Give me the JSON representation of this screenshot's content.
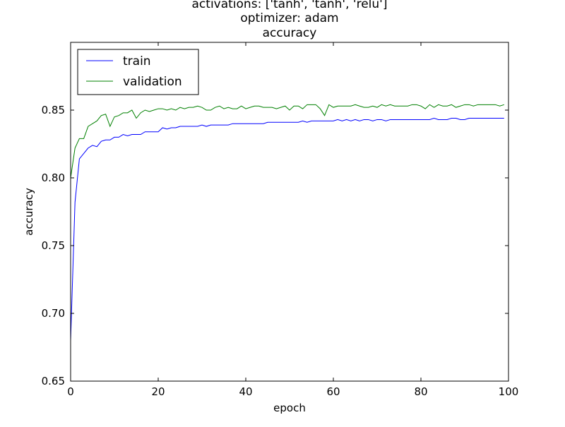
{
  "chart_data": {
    "type": "line",
    "title_lines": [
      "activations: ['tanh', 'tanh', 'relu']",
      "optimizer: adam",
      "accuracy"
    ],
    "xlabel": "epoch",
    "ylabel": "accuracy",
    "xlim": [
      0,
      100
    ],
    "ylim": [
      0.65,
      0.9
    ],
    "x_ticks": [
      0,
      20,
      40,
      60,
      80,
      100
    ],
    "x_tick_labels": [
      "0",
      "20",
      "40",
      "60",
      "80",
      "100"
    ],
    "y_ticks": [
      0.65,
      0.7,
      0.75,
      0.8,
      0.85
    ],
    "y_tick_labels": [
      "0.65",
      "0.70",
      "0.75",
      "0.80",
      "0.85"
    ],
    "grid": false,
    "legend_position": "upper-left",
    "x": [
      0,
      1,
      2,
      3,
      4,
      5,
      6,
      7,
      8,
      9,
      10,
      11,
      12,
      13,
      14,
      15,
      16,
      17,
      18,
      19,
      20,
      21,
      22,
      23,
      24,
      25,
      26,
      27,
      28,
      29,
      30,
      31,
      32,
      33,
      34,
      35,
      36,
      37,
      38,
      39,
      40,
      41,
      42,
      43,
      44,
      45,
      46,
      47,
      48,
      49,
      50,
      51,
      52,
      53,
      54,
      55,
      56,
      57,
      58,
      59,
      60,
      61,
      62,
      63,
      64,
      65,
      66,
      67,
      68,
      69,
      70,
      71,
      72,
      73,
      74,
      75,
      76,
      77,
      78,
      79,
      80,
      81,
      82,
      83,
      84,
      85,
      86,
      87,
      88,
      89,
      90,
      91,
      92,
      93,
      94,
      95,
      96,
      97,
      98,
      99
    ],
    "series": [
      {
        "name": "train",
        "color": "#0000ff",
        "values": [
          0.68,
          0.782,
          0.814,
          0.818,
          0.822,
          0.824,
          0.823,
          0.827,
          0.828,
          0.828,
          0.83,
          0.83,
          0.832,
          0.831,
          0.832,
          0.832,
          0.832,
          0.834,
          0.834,
          0.834,
          0.834,
          0.837,
          0.836,
          0.837,
          0.837,
          0.838,
          0.838,
          0.838,
          0.838,
          0.838,
          0.839,
          0.838,
          0.839,
          0.839,
          0.839,
          0.839,
          0.839,
          0.84,
          0.84,
          0.84,
          0.84,
          0.84,
          0.84,
          0.84,
          0.84,
          0.841,
          0.841,
          0.841,
          0.841,
          0.841,
          0.841,
          0.841,
          0.841,
          0.842,
          0.841,
          0.842,
          0.842,
          0.842,
          0.842,
          0.842,
          0.842,
          0.843,
          0.842,
          0.843,
          0.842,
          0.843,
          0.842,
          0.843,
          0.843,
          0.842,
          0.843,
          0.843,
          0.842,
          0.843,
          0.843,
          0.843,
          0.843,
          0.843,
          0.843,
          0.843,
          0.843,
          0.843,
          0.843,
          0.844,
          0.843,
          0.843,
          0.843,
          0.844,
          0.844,
          0.843,
          0.843,
          0.844,
          0.844,
          0.844,
          0.844,
          0.844,
          0.844,
          0.844,
          0.844,
          0.844
        ]
      },
      {
        "name": "validation",
        "color": "#008000",
        "values": [
          0.8,
          0.822,
          0.829,
          0.829,
          0.838,
          0.84,
          0.842,
          0.846,
          0.847,
          0.838,
          0.845,
          0.846,
          0.848,
          0.848,
          0.85,
          0.844,
          0.848,
          0.85,
          0.849,
          0.85,
          0.851,
          0.851,
          0.85,
          0.851,
          0.85,
          0.852,
          0.851,
          0.852,
          0.852,
          0.853,
          0.852,
          0.85,
          0.85,
          0.852,
          0.853,
          0.851,
          0.852,
          0.851,
          0.851,
          0.853,
          0.851,
          0.852,
          0.853,
          0.853,
          0.852,
          0.852,
          0.852,
          0.851,
          0.852,
          0.853,
          0.85,
          0.853,
          0.853,
          0.851,
          0.854,
          0.854,
          0.854,
          0.851,
          0.846,
          0.854,
          0.852,
          0.853,
          0.853,
          0.853,
          0.853,
          0.854,
          0.853,
          0.852,
          0.852,
          0.853,
          0.852,
          0.854,
          0.853,
          0.854,
          0.853,
          0.853,
          0.853,
          0.853,
          0.854,
          0.854,
          0.853,
          0.851,
          0.854,
          0.852,
          0.854,
          0.853,
          0.853,
          0.854,
          0.852,
          0.853,
          0.854,
          0.854,
          0.853,
          0.854,
          0.854,
          0.854,
          0.854,
          0.854,
          0.853,
          0.854
        ]
      }
    ]
  }
}
